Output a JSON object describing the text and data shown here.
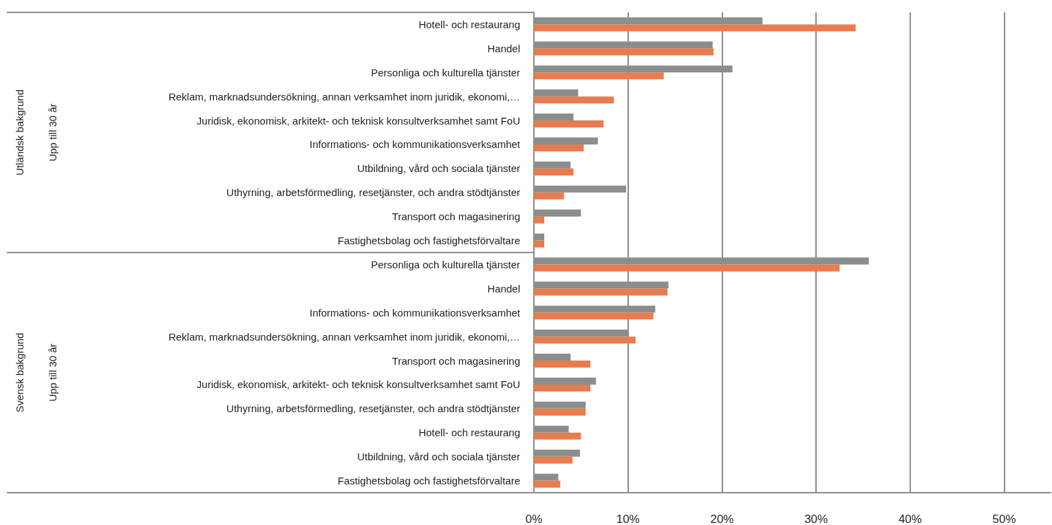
{
  "chart_data": {
    "type": "bar",
    "orientation": "horizontal",
    "categories": [
      "Hotell- och restaurang",
      "Handel",
      "Personliga och kulturella tjänster",
      "Reklam, marknadsundersökning, annan verksamhet inom juridik, ekonomi,…",
      "Juridisk, ekonomisk, arkitekt- och teknisk konsultverksamhet samt FoU",
      "Informations- och kommunikationsverksamhet",
      "Utbildning, vård och sociala tjänster",
      "Uthyrning, arbetsförmedling, resetjänster, och andra stödtjänster",
      "Transport och magasinering",
      "Fastighetsbolag och fastighetsförvaltare",
      "Personliga och kulturella tjänster",
      "Handel",
      "Informations- och kommunikationsverksamhet",
      "Reklam, marknadsundersökning, annan verksamhet inom juridik, ekonomi,…",
      "Transport och magasinering",
      "Juridisk, ekonomisk, arkitekt- och teknisk konsultverksamhet samt FoU",
      "Uthyrning, arbetsförmedling, resetjänster, och andra stödtjänster",
      "Hotell- och restaurang",
      "Utbildning, vård och sociala tjänster",
      "Fastighetsbolag och fastighetsförvaltare"
    ],
    "series": [
      {
        "color": "#8b8f8c",
        "values": [
          24.3,
          19.0,
          21.1,
          4.7,
          4.2,
          6.8,
          3.9,
          9.8,
          5.0,
          1.1,
          35.6,
          14.3,
          12.9,
          10.0,
          3.9,
          6.6,
          5.5,
          3.7,
          4.9,
          2.6
        ]
      },
      {
        "color": "#e67c4f",
        "values": [
          34.2,
          19.1,
          13.8,
          8.5,
          7.4,
          5.3,
          4.2,
          3.2,
          1.1,
          1.1,
          32.5,
          14.2,
          12.7,
          10.8,
          6.0,
          6.0,
          5.5,
          5.0,
          4.1,
          2.8
        ]
      }
    ],
    "xlim": [
      0,
      55
    ],
    "xticks": [
      {
        "value": 0,
        "label": "0%"
      },
      {
        "value": 10,
        "label": "10%"
      },
      {
        "value": 20,
        "label": "20%"
      },
      {
        "value": 30,
        "label": "30%"
      },
      {
        "value": 40,
        "label": "40%"
      },
      {
        "value": 50,
        "label": "50%"
      }
    ],
    "grid": "x",
    "annotations": [
      "Utländsk bakgrund",
      "Upp till 30 år",
      "Svensk bakgrund",
      "Upp till 30 år"
    ]
  }
}
